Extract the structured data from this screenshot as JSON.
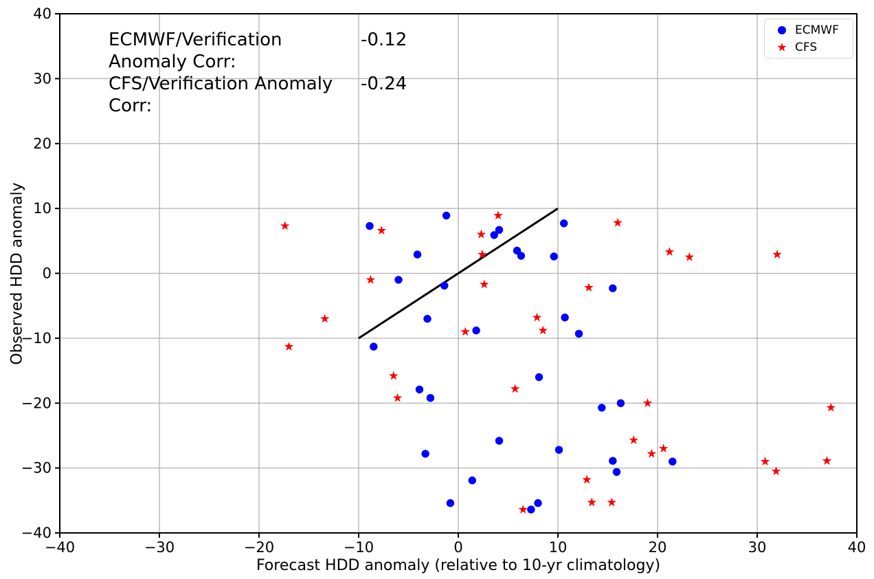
{
  "figure": {
    "background": "#ffffff",
    "grid_color": "#b0b0b0",
    "spine_color": "#000000",
    "text_color": "#000000"
  },
  "chart_data": {
    "type": "scatter",
    "title": "",
    "xlabel": "Forecast HDD anomaly (relative to 10-yr climatology)",
    "ylabel": "Observed HDD anomaly",
    "xlim": [
      -40,
      40
    ],
    "ylim": [
      -40,
      40
    ],
    "xticks": [
      -40,
      -30,
      -20,
      -10,
      0,
      10,
      20,
      30,
      40
    ],
    "yticks": [
      -40,
      -30,
      -20,
      -10,
      0,
      10,
      20,
      30,
      40
    ],
    "grid": true,
    "legend_position": "upper right",
    "annotations": [
      {
        "label": "ECMWF/Verification Anomaly Corr:",
        "value": "-0.12"
      },
      {
        "label": "CFS/Verification Anomaly Corr:",
        "value": "-0.24"
      }
    ],
    "series": [
      {
        "name": "ECMWF",
        "marker": "circle",
        "color": "#0000ff",
        "points": [
          [
            -8.9,
            7.3
          ],
          [
            -4.1,
            2.9
          ],
          [
            -1.2,
            8.9
          ],
          [
            -6.0,
            -1.0
          ],
          [
            -1.4,
            -1.9
          ],
          [
            -3.1,
            -7.0
          ],
          [
            -8.5,
            -11.3
          ],
          [
            3.6,
            5.9
          ],
          [
            4.1,
            6.7
          ],
          [
            5.9,
            3.5
          ],
          [
            6.3,
            2.7
          ],
          [
            9.6,
            2.6
          ],
          [
            10.6,
            7.7
          ],
          [
            15.5,
            -2.3
          ],
          [
            10.7,
            -6.8
          ],
          [
            1.8,
            -8.8
          ],
          [
            12.1,
            -9.3
          ],
          [
            -3.9,
            -17.9
          ],
          [
            -2.8,
            -19.2
          ],
          [
            -3.3,
            -27.8
          ],
          [
            -0.8,
            -35.4
          ],
          [
            8.1,
            -16.0
          ],
          [
            14.4,
            -20.7
          ],
          [
            16.3,
            -20.0
          ],
          [
            4.1,
            -25.8
          ],
          [
            10.1,
            -27.2
          ],
          [
            15.5,
            -28.9
          ],
          [
            15.9,
            -30.6
          ],
          [
            1.4,
            -31.9
          ],
          [
            7.3,
            -36.4
          ],
          [
            8.0,
            -35.4
          ],
          [
            21.5,
            -29.0
          ]
        ]
      },
      {
        "name": "CFS",
        "marker": "star",
        "color": "#ff0000",
        "points": [
          [
            -17.4,
            7.3
          ],
          [
            -7.7,
            6.6
          ],
          [
            -8.8,
            -1.0
          ],
          [
            -13.4,
            -7.0
          ],
          [
            -17.0,
            -11.3
          ],
          [
            0.7,
            -9.0
          ],
          [
            4.0,
            8.9
          ],
          [
            2.3,
            6.0
          ],
          [
            2.4,
            2.9
          ],
          [
            2.6,
            -1.7
          ],
          [
            13.1,
            -2.2
          ],
          [
            7.9,
            -6.8
          ],
          [
            8.5,
            -8.8
          ],
          [
            16.0,
            7.8
          ],
          [
            21.2,
            3.3
          ],
          [
            23.2,
            2.5
          ],
          [
            32.0,
            2.9
          ],
          [
            -6.5,
            -15.8
          ],
          [
            -6.1,
            -19.2
          ],
          [
            5.7,
            -17.8
          ],
          [
            19.0,
            -20.0
          ],
          [
            17.6,
            -25.7
          ],
          [
            19.4,
            -27.8
          ],
          [
            20.6,
            -27.0
          ],
          [
            12.9,
            -31.8
          ],
          [
            13.4,
            -35.3
          ],
          [
            15.4,
            -35.3
          ],
          [
            6.5,
            -36.4
          ],
          [
            30.8,
            -29.0
          ],
          [
            31.9,
            -30.5
          ],
          [
            37.0,
            -28.9
          ],
          [
            37.4,
            -20.7
          ]
        ]
      }
    ],
    "reference_line": {
      "from": [
        -10,
        -10
      ],
      "to": [
        10,
        10
      ],
      "color": "#000000"
    }
  }
}
